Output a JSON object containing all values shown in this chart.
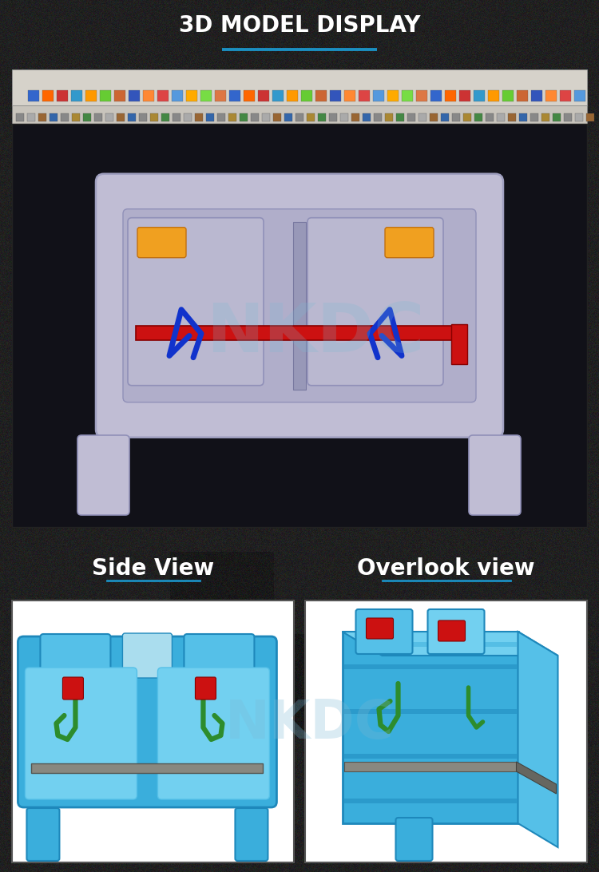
{
  "title": "3D MODEL DISPLAY",
  "title_color": "#ffffff",
  "title_underline_color": "#1b8fc1",
  "background_color": "#1c1c1c",
  "label_side": "Side View",
  "label_overlook": "Overlook view",
  "label_color": "#ffffff",
  "label_underline_color": "#1b8fc1",
  "watermark_text": "NKDC",
  "watermark_color": "#7ab8d4",
  "toolbar_bg": "#d6d2ca",
  "toolbar2_bg": "#c8c4bc",
  "viewport_bg": "#111118",
  "panel_border": "#444444",
  "body_main": "#c0bdd4",
  "body_shadow": "#8888a8",
  "body_inner": "#b0aeca",
  "blue_main": "#3aaedc",
  "blue_dark": "#1e88bb",
  "blue_light": "#72d0f0",
  "blue_mid": "#55c0e8",
  "spring_green": "#2d8c2d",
  "spring_red": "#cc1111",
  "rail_gray": "#888880",
  "yellow_insert": "#f0a020"
}
